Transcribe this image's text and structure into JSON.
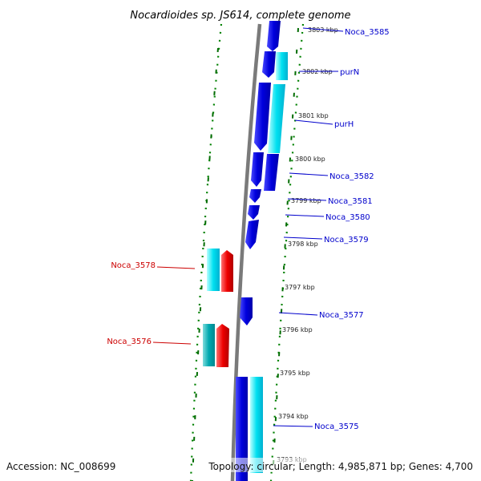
{
  "title": "Nocardioides sp. JS614, complete genome",
  "footer": {
    "accession": "Accession: NC_008699",
    "summary": "Topology: circular; Length: 4,985,871 bp; Genes: 4,700"
  },
  "kbp_ticks": [
    "3803 kbp",
    "3802 kbp",
    "3801 kbp",
    "3800 kbp",
    "3799 kbp",
    "3798 kbp",
    "3797 kbp",
    "3796 kbp",
    "3795 kbp",
    "3794 kbp",
    "3793 kbp"
  ],
  "genes_right": [
    "Noca_3585",
    "purN",
    "purH",
    "Noca_3582",
    "Noca_3581",
    "Noca_3580",
    "Noca_3579",
    "Noca_3577",
    "Noca_3575"
  ],
  "genes_left": [
    "Noca_3578",
    "Noca_3576"
  ],
  "colors": {
    "axis": "#808080",
    "dots": "#008000",
    "gene_blue": "#0000dd",
    "gene_cyan": "#00d8e8",
    "gene_red": "#ee0000",
    "label_blue": "#0000cc",
    "label_red": "#cc0000"
  }
}
